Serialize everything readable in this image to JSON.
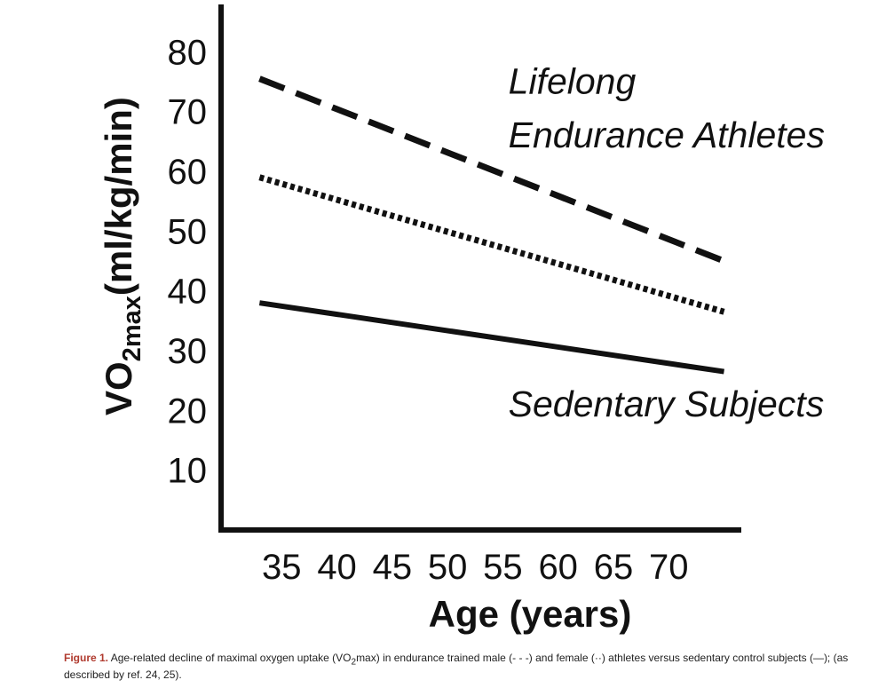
{
  "chart_data": {
    "type": "line",
    "title": "",
    "xlabel": "Age (years)",
    "ylabel": {
      "prefix": "VO",
      "subscript": "2max",
      "suffix": "(ml/kg/min)"
    },
    "xlim": [
      30,
      76
    ],
    "ylim": [
      0,
      86
    ],
    "x_ticks": [
      35,
      40,
      45,
      50,
      55,
      60,
      65,
      70
    ],
    "y_ticks": [
      10,
      20,
      30,
      40,
      50,
      60,
      70,
      80
    ],
    "grid": false,
    "legend": "none",
    "series": [
      {
        "style": "dashed",
        "x": [
          33,
          75
        ],
        "y": [
          75.5,
          45
        ]
      },
      {
        "style": "dotted",
        "x": [
          33,
          75
        ],
        "y": [
          59,
          36.5
        ]
      },
      {
        "style": "solid",
        "x": [
          33,
          75
        ],
        "y": [
          38,
          26.5
        ]
      }
    ],
    "annotations": [
      {
        "text": "Lifelong",
        "x": 55.5,
        "y": 73
      },
      {
        "text": "Endurance Athletes",
        "x": 55.5,
        "y": 64
      },
      {
        "text": "Sedentary Subjects",
        "x": 55.5,
        "y": 19
      }
    ]
  },
  "caption": {
    "label": "Figure 1.",
    "text_a": "Age-related decline of maximal oxygen uptake (VO",
    "sub": "2",
    "text_b": "max) in endurance trained male (- - -) and female (··) athletes versus sedentary control subjects (—); (as described by ref. 24, 25)."
  }
}
